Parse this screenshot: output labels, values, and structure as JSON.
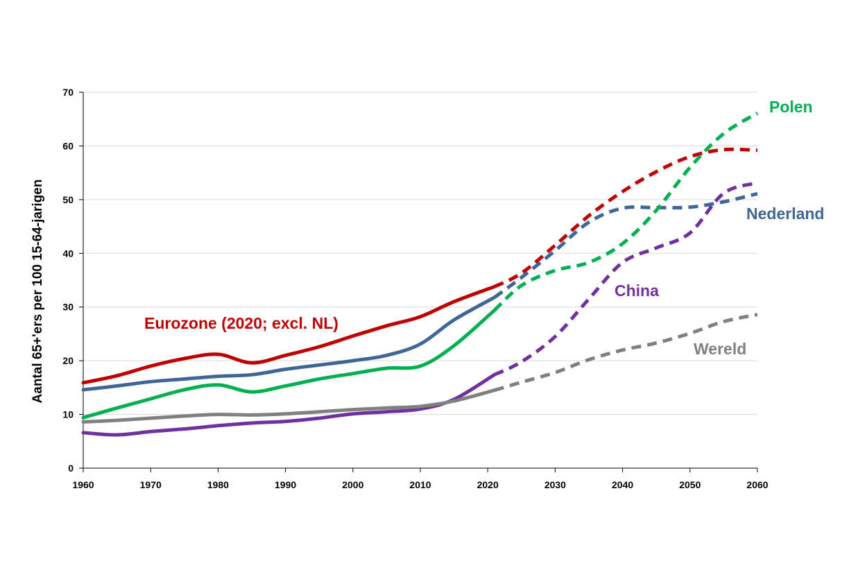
{
  "chart_data": {
    "type": "line",
    "ylabel": "Aantal 65+'ers per 100 15-64-jarigen",
    "xlabel": "",
    "xlim": [
      1960,
      2060
    ],
    "ylim": [
      0,
      70
    ],
    "x_ticks": [
      1960,
      1970,
      1980,
      1990,
      2000,
      2010,
      2020,
      2030,
      2040,
      2050,
      2060
    ],
    "y_ticks": [
      0,
      10,
      20,
      30,
      40,
      50,
      60,
      70
    ],
    "grid": "horizontal",
    "legend": "labels placed next to lines",
    "projection_start": 2021,
    "series": [
      {
        "name": "Eurozone (2020; excl. NL)",
        "color": "#C00000",
        "points": [
          [
            1960,
            15.9
          ],
          [
            1965,
            17.2
          ],
          [
            1970,
            19.0
          ],
          [
            1975,
            20.4
          ],
          [
            1980,
            21.2
          ],
          [
            1985,
            19.6
          ],
          [
            1990,
            21.0
          ],
          [
            1995,
            22.6
          ],
          [
            2000,
            24.6
          ],
          [
            2005,
            26.5
          ],
          [
            2010,
            28.2
          ],
          [
            2015,
            31.0
          ],
          [
            2021,
            33.8
          ],
          [
            2025,
            36.3
          ],
          [
            2030,
            41.5
          ],
          [
            2035,
            47.0
          ],
          [
            2040,
            51.5
          ],
          [
            2045,
            55.2
          ],
          [
            2050,
            58.0
          ],
          [
            2055,
            59.3
          ],
          [
            2060,
            59.2
          ]
        ]
      },
      {
        "name": "Nederland",
        "color": "#3E6797",
        "points": [
          [
            1960,
            14.6
          ],
          [
            1965,
            15.3
          ],
          [
            1970,
            16.1
          ],
          [
            1975,
            16.6
          ],
          [
            1980,
            17.1
          ],
          [
            1985,
            17.4
          ],
          [
            1990,
            18.4
          ],
          [
            1995,
            19.2
          ],
          [
            2000,
            20.0
          ],
          [
            2005,
            21.0
          ],
          [
            2010,
            23.1
          ],
          [
            2015,
            27.6
          ],
          [
            2021,
            31.8
          ],
          [
            2025,
            35.5
          ],
          [
            2030,
            40.5
          ],
          [
            2035,
            45.8
          ],
          [
            2040,
            48.4
          ],
          [
            2045,
            48.5
          ],
          [
            2050,
            48.6
          ],
          [
            2055,
            49.6
          ],
          [
            2060,
            51.1
          ]
        ]
      },
      {
        "name": "Polen",
        "color": "#00B050",
        "points": [
          [
            1960,
            9.4
          ],
          [
            1965,
            11.2
          ],
          [
            1970,
            12.9
          ],
          [
            1975,
            14.6
          ],
          [
            1980,
            15.5
          ],
          [
            1985,
            14.2
          ],
          [
            1990,
            15.3
          ],
          [
            1995,
            16.6
          ],
          [
            2000,
            17.6
          ],
          [
            2005,
            18.6
          ],
          [
            2010,
            19.0
          ],
          [
            2015,
            22.8
          ],
          [
            2021,
            29.4
          ],
          [
            2025,
            34.0
          ],
          [
            2030,
            36.8
          ],
          [
            2035,
            38.3
          ],
          [
            2040,
            41.8
          ],
          [
            2045,
            48.0
          ],
          [
            2050,
            56.0
          ],
          [
            2055,
            62.3
          ],
          [
            2060,
            66.1
          ]
        ]
      },
      {
        "name": "China",
        "color": "#7030A0",
        "points": [
          [
            1960,
            6.6
          ],
          [
            1965,
            6.2
          ],
          [
            1970,
            6.8
          ],
          [
            1975,
            7.3
          ],
          [
            1980,
            7.9
          ],
          [
            1985,
            8.4
          ],
          [
            1990,
            8.7
          ],
          [
            1995,
            9.3
          ],
          [
            2000,
            10.1
          ],
          [
            2005,
            10.5
          ],
          [
            2010,
            11.0
          ],
          [
            2015,
            12.8
          ],
          [
            2021,
            17.4
          ],
          [
            2025,
            19.8
          ],
          [
            2030,
            24.5
          ],
          [
            2035,
            31.5
          ],
          [
            2040,
            38.3
          ],
          [
            2045,
            41.0
          ],
          [
            2050,
            43.8
          ],
          [
            2055,
            51.2
          ],
          [
            2060,
            53.1
          ]
        ]
      },
      {
        "name": "Wereld",
        "color": "#808080",
        "points": [
          [
            1960,
            8.6
          ],
          [
            1965,
            8.9
          ],
          [
            1970,
            9.3
          ],
          [
            1975,
            9.7
          ],
          [
            1980,
            10.0
          ],
          [
            1985,
            9.9
          ],
          [
            1990,
            10.1
          ],
          [
            1995,
            10.5
          ],
          [
            2000,
            10.9
          ],
          [
            2005,
            11.2
          ],
          [
            2010,
            11.5
          ],
          [
            2015,
            12.5
          ],
          [
            2021,
            14.5
          ],
          [
            2025,
            16.0
          ],
          [
            2030,
            17.8
          ],
          [
            2035,
            20.2
          ],
          [
            2040,
            22.0
          ],
          [
            2045,
            23.3
          ],
          [
            2050,
            25.1
          ],
          [
            2055,
            27.3
          ],
          [
            2060,
            28.6
          ]
        ]
      }
    ]
  }
}
